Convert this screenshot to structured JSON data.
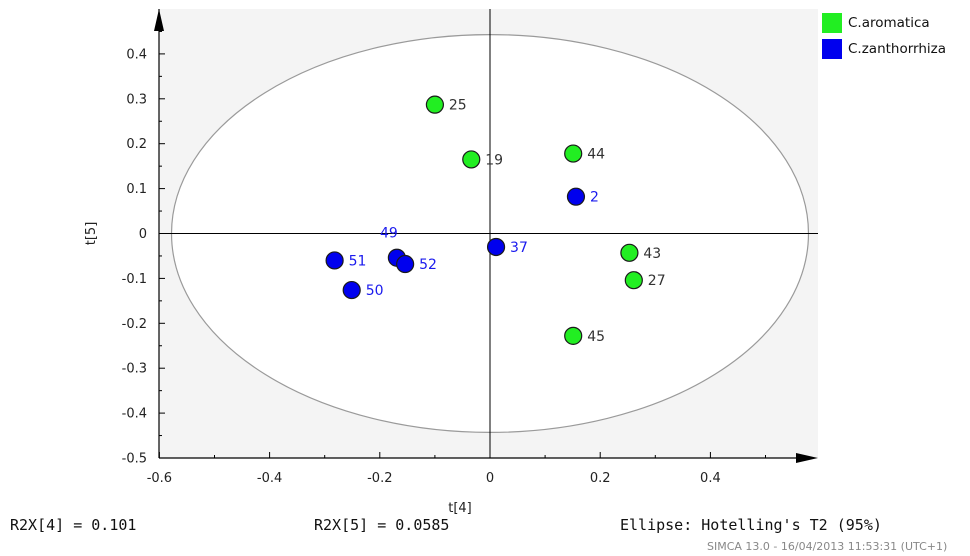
{
  "chart_data": {
    "type": "scatter",
    "title": "",
    "xlabel": "t[4]",
    "ylabel": "t[5]",
    "xlim": [
      -0.6,
      0.6
    ],
    "ylim": [
      -0.5,
      0.5
    ],
    "x_ticks": [
      "-0.6",
      "-0.4",
      "-0.2",
      "0",
      "0.2",
      "0.4"
    ],
    "y_ticks": [
      "0.4",
      "0.3",
      "0.2",
      "0.1",
      "0",
      "-0.1",
      "-0.2",
      "-0.3",
      "-0.4",
      "-0.5"
    ],
    "ellipse": {
      "x_semi_axis": 0.578,
      "y_semi_axis": 0.443
    },
    "series": [
      {
        "name": "C.aromatica",
        "color": "#22ee22",
        "label_color": "#333333",
        "points": [
          {
            "label": "25",
            "x": -0.1,
            "y": 0.287
          },
          {
            "label": "19",
            "x": -0.034,
            "y": 0.165
          },
          {
            "label": "44",
            "x": 0.151,
            "y": 0.178
          },
          {
            "label": "43",
            "x": 0.253,
            "y": -0.043
          },
          {
            "label": "27",
            "x": 0.261,
            "y": -0.104
          },
          {
            "label": "45",
            "x": 0.151,
            "y": -0.228
          }
        ]
      },
      {
        "name": "C.zanthorrhiza",
        "color": "#0000ee",
        "label_color": "#1a1aee",
        "points": [
          {
            "label": "2",
            "x": 0.156,
            "y": 0.082
          },
          {
            "label": "37",
            "x": 0.011,
            "y": -0.03
          },
          {
            "label": "49",
            "x": -0.169,
            "y": -0.054
          },
          {
            "label": "52",
            "x": -0.154,
            "y": -0.068
          },
          {
            "label": "51",
            "x": -0.282,
            "y": -0.06
          },
          {
            "label": "50",
            "x": -0.251,
            "y": -0.126
          }
        ]
      }
    ],
    "legend": {
      "position": "top-right",
      "items": [
        {
          "label": "C.aromatica",
          "color": "#22ee22"
        },
        {
          "label": "C.zanthorrhiza",
          "color": "#0000ee"
        }
      ]
    }
  },
  "footer": {
    "r2x4": "R2X[4] = 0.101",
    "r2x5": "R2X[5] = 0.0585",
    "ellipse": "Ellipse: Hotelling's T2 (95%)",
    "stamp": "SIMCA 13.0 - 16/04/2013 11:53:31 (UTC+1)"
  }
}
